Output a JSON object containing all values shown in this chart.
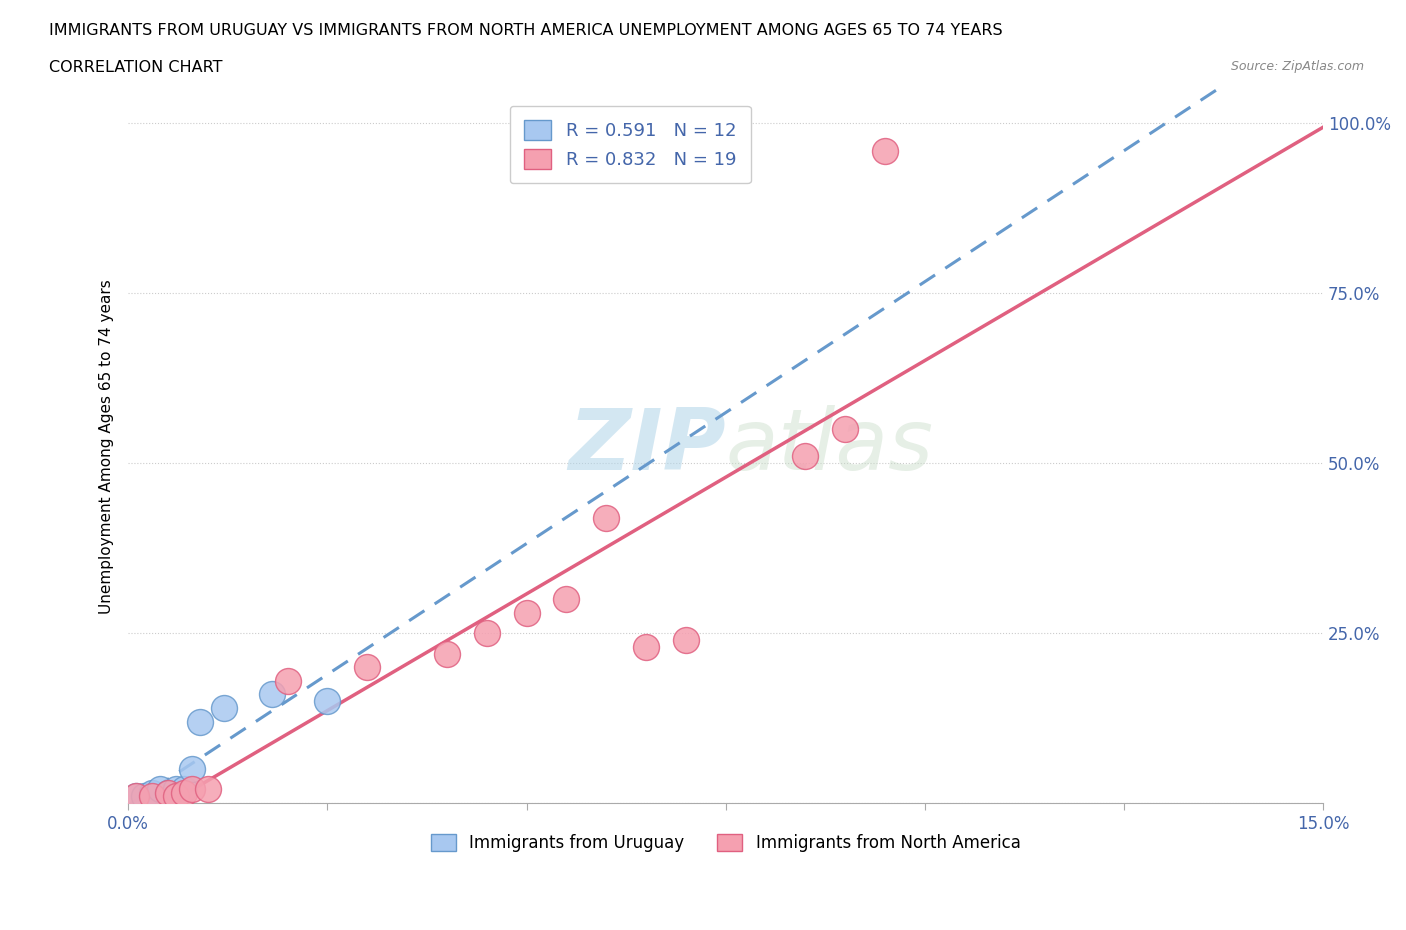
{
  "title_line1": "IMMIGRANTS FROM URUGUAY VS IMMIGRANTS FROM NORTH AMERICA UNEMPLOYMENT AMONG AGES 65 TO 74 YEARS",
  "title_line2": "CORRELATION CHART",
  "source": "Source: ZipAtlas.com",
  "ylabel": "Unemployment Among Ages 65 to 74 years",
  "xlim": [
    0.0,
    0.15
  ],
  "ylim": [
    0.0,
    1.05
  ],
  "xticks": [
    0.0,
    0.025,
    0.05,
    0.075,
    0.1,
    0.125,
    0.15
  ],
  "xtick_labels": [
    "0.0%",
    "",
    "",
    "",
    "",
    "",
    "15.0%"
  ],
  "yticks": [
    0.0,
    0.25,
    0.5,
    0.75,
    1.0
  ],
  "ytick_labels": [
    "",
    "25.0%",
    "50.0%",
    "75.0%",
    "100.0%"
  ],
  "R_uruguay": 0.591,
  "N_uruguay": 12,
  "R_north_america": 0.832,
  "N_north_america": 19,
  "color_uruguay": "#a8c8f0",
  "color_north_america": "#f5a0b0",
  "line_color_uruguay": "#6699cc",
  "line_color_north_america": "#e06080",
  "text_color_blue": "#4466aa",
  "watermark_zip": "ZIP",
  "watermark_atlas": "atlas",
  "uruguay_x": [
    0.001,
    0.002,
    0.003,
    0.004,
    0.005,
    0.006,
    0.007,
    0.008,
    0.009,
    0.012,
    0.018,
    0.025
  ],
  "uruguay_y": [
    0.01,
    0.01,
    0.015,
    0.02,
    0.015,
    0.02,
    0.02,
    0.05,
    0.12,
    0.14,
    0.16,
    0.15
  ],
  "north_america_x": [
    0.001,
    0.003,
    0.005,
    0.006,
    0.007,
    0.008,
    0.01,
    0.02,
    0.03,
    0.04,
    0.045,
    0.05,
    0.055,
    0.06,
    0.065,
    0.07,
    0.085,
    0.09,
    0.095
  ],
  "north_america_y": [
    0.01,
    0.01,
    0.015,
    0.01,
    0.015,
    0.02,
    0.02,
    0.18,
    0.2,
    0.22,
    0.25,
    0.28,
    0.3,
    0.42,
    0.23,
    0.24,
    0.51,
    0.55,
    0.96
  ]
}
